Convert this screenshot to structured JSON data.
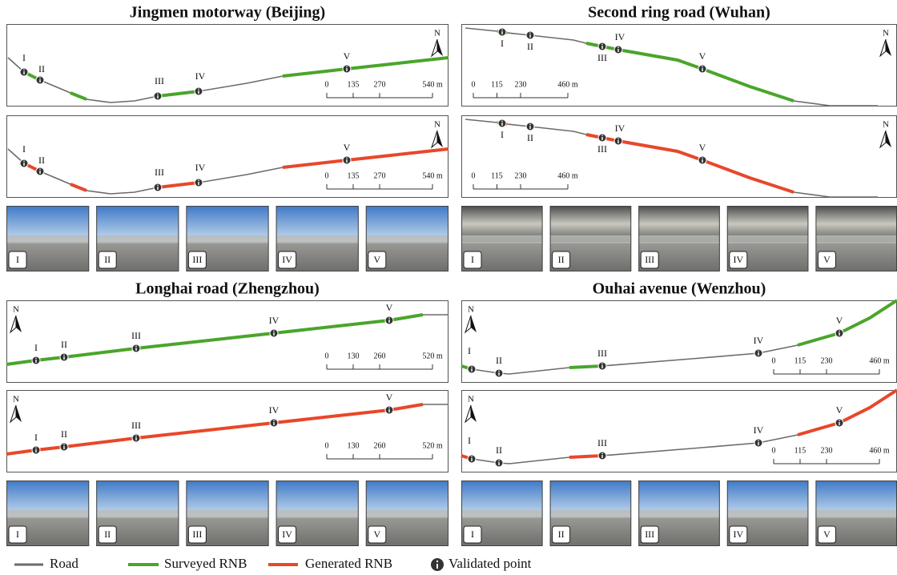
{
  "panels": [
    {
      "title": "Jingmen motorway (Beijing)",
      "scale": [
        "0",
        "135",
        "270",
        "540 m"
      ],
      "points": [
        "I",
        "II",
        "III",
        "IV",
        "V"
      ],
      "photos": [
        "I",
        "II",
        "III",
        "IV",
        "V"
      ]
    },
    {
      "title": "Second ring road (Wuhan)",
      "scale": [
        "0",
        "115",
        "230",
        "460 m"
      ],
      "points": [
        "I",
        "II",
        "III",
        "IV",
        "V"
      ],
      "photos": [
        "I",
        "II",
        "III",
        "IV",
        "V"
      ]
    },
    {
      "title": "Longhai road (Zhengzhou)",
      "scale": [
        "0",
        "130",
        "260",
        "520 m"
      ],
      "points": [
        "I",
        "II",
        "III",
        "IV",
        "V"
      ],
      "photos": [
        "I",
        "II",
        "III",
        "IV",
        "V"
      ]
    },
    {
      "title": "Ouhai avenue (Wenzhou)",
      "scale": [
        "0",
        "115",
        "230",
        "460 m"
      ],
      "points": [
        "I",
        "II",
        "III",
        "IV",
        "V"
      ],
      "photos": [
        "I",
        "II",
        "III",
        "IV",
        "V"
      ]
    }
  ],
  "north": "N",
  "legend": [
    "Road",
    "Surveyed RNB",
    "Generated RNB",
    "Validated point"
  ]
}
